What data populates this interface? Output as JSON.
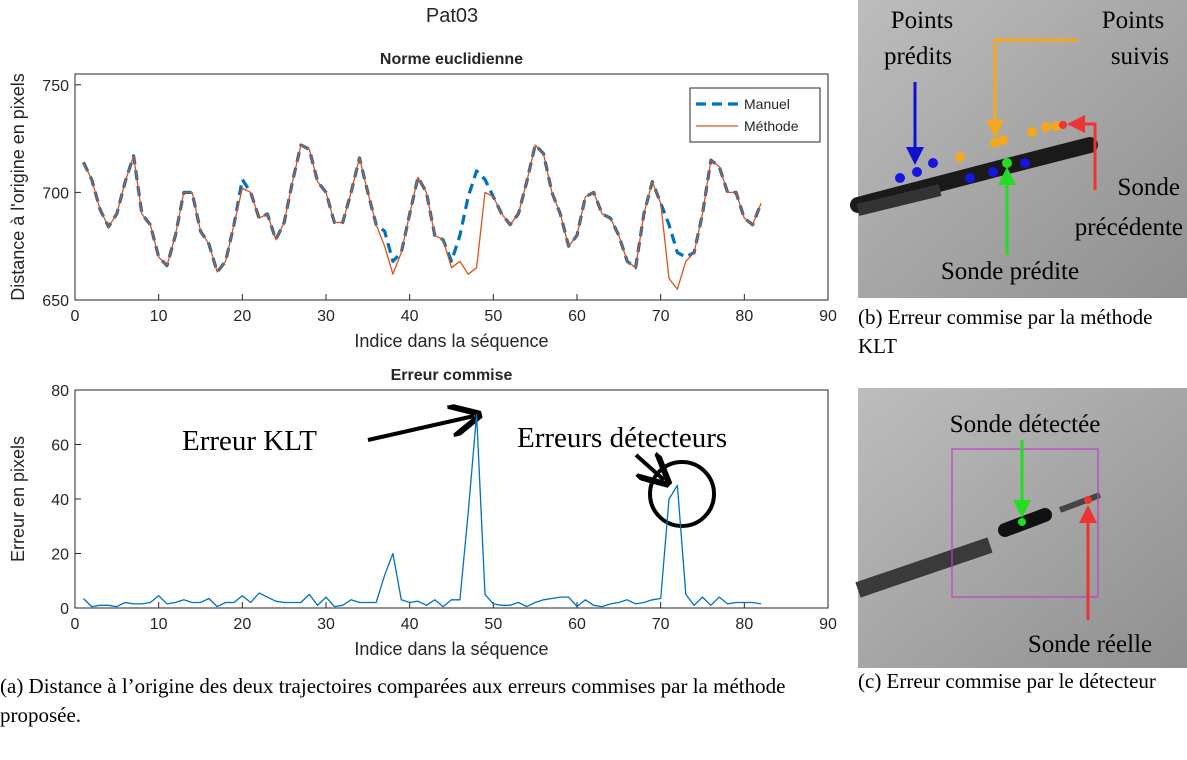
{
  "suptitle": "Pat03",
  "chart_data": [
    {
      "type": "line",
      "title": "Norme euclidienne",
      "xlabel": "Indice dans la séquence",
      "ylabel": "Distance à l'origine en pixels",
      "x": [
        1,
        2,
        3,
        4,
        5,
        6,
        7,
        8,
        9,
        10,
        11,
        12,
        13,
        14,
        15,
        16,
        17,
        18,
        19,
        20,
        21,
        22,
        23,
        24,
        25,
        26,
        27,
        28,
        29,
        30,
        31,
        32,
        33,
        34,
        35,
        36,
        37,
        38,
        39,
        40,
        41,
        42,
        43,
        44,
        45,
        46,
        47,
        48,
        49,
        50,
        51,
        52,
        53,
        54,
        55,
        56,
        57,
        58,
        59,
        60,
        61,
        62,
        63,
        64,
        65,
        66,
        67,
        68,
        69,
        70,
        71,
        72,
        73,
        74,
        75,
        76,
        77,
        78,
        79,
        80,
        81,
        82
      ],
      "series": [
        {
          "name": "Manuel",
          "color": "#0072bd",
          "linestyle": "dashed",
          "values": [
            714,
            706,
            692,
            684,
            690,
            705,
            717,
            690,
            685,
            670,
            666,
            680,
            700,
            700,
            682,
            676,
            663,
            668,
            685,
            706,
            700,
            688,
            690,
            678,
            686,
            705,
            722,
            720,
            705,
            700,
            686,
            686,
            700,
            716,
            700,
            685,
            682,
            668,
            672,
            690,
            707,
            700,
            680,
            678,
            668,
            680,
            698,
            710,
            706,
            698,
            690,
            685,
            690,
            705,
            722,
            718,
            700,
            690,
            675,
            680,
            698,
            700,
            690,
            688,
            680,
            668,
            665,
            690,
            705,
            695,
            685,
            672,
            670,
            672,
            690,
            715,
            712,
            700,
            700,
            688,
            685,
            695
          ]
        },
        {
          "name": "Méthode",
          "color": "#d95319",
          "linestyle": "solid",
          "values": [
            714,
            706,
            692,
            684,
            690,
            705,
            717,
            690,
            685,
            670,
            666,
            680,
            700,
            700,
            682,
            676,
            663,
            668,
            685,
            702,
            700,
            688,
            690,
            678,
            686,
            705,
            722,
            720,
            705,
            700,
            686,
            686,
            700,
            716,
            700,
            685,
            675,
            662,
            672,
            690,
            707,
            700,
            680,
            678,
            665,
            668,
            662,
            665,
            700,
            698,
            690,
            685,
            690,
            705,
            722,
            718,
            700,
            690,
            675,
            680,
            698,
            700,
            690,
            688,
            680,
            668,
            665,
            690,
            705,
            695,
            660,
            655,
            668,
            672,
            690,
            715,
            712,
            700,
            700,
            688,
            685,
            695
          ]
        }
      ],
      "xlim": [
        0,
        90
      ],
      "xticks": [
        0,
        10,
        20,
        30,
        40,
        50,
        60,
        70,
        80,
        90
      ],
      "ylim": [
        650,
        755
      ],
      "yticks": [
        650,
        700,
        750
      ],
      "legend": "northeast"
    },
    {
      "type": "line",
      "title": "Erreur commise",
      "xlabel": "Indice dans la séquence",
      "ylabel": "Erreur en pixels",
      "x": [
        1,
        2,
        3,
        4,
        5,
        6,
        7,
        8,
        9,
        10,
        11,
        12,
        13,
        14,
        15,
        16,
        17,
        18,
        19,
        20,
        21,
        22,
        23,
        24,
        25,
        26,
        27,
        28,
        29,
        30,
        31,
        32,
        33,
        34,
        35,
        36,
        37,
        38,
        39,
        40,
        41,
        42,
        43,
        44,
        45,
        46,
        47,
        48,
        49,
        50,
        51,
        52,
        53,
        54,
        55,
        56,
        57,
        58,
        59,
        60,
        61,
        62,
        63,
        64,
        65,
        66,
        67,
        68,
        69,
        70,
        71,
        72,
        73,
        74,
        75,
        76,
        77,
        78,
        79,
        80,
        81,
        82
      ],
      "color": "#0072bd",
      "values": [
        3.5,
        0.5,
        1,
        1,
        0.5,
        2,
        1.5,
        1.5,
        2,
        4.5,
        1.5,
        2,
        3,
        2,
        2,
        3.5,
        0.5,
        2,
        2,
        4.5,
        2,
        5.5,
        4,
        2.5,
        2,
        2,
        2,
        5,
        1,
        4,
        0.5,
        1,
        3,
        2,
        2,
        2,
        12,
        20,
        3,
        2,
        2.5,
        1,
        3,
        0.5,
        3,
        3,
        35,
        71,
        5,
        1.5,
        1,
        1,
        2,
        0.5,
        2,
        3,
        3.5,
        4,
        4,
        0.5,
        3,
        1,
        0.5,
        1.5,
        2,
        3,
        1.5,
        2,
        3,
        3.5,
        40,
        45,
        5,
        1,
        4,
        1,
        4,
        1.5,
        2,
        2,
        2,
        1.5
      ],
      "xlim": [
        0,
        90
      ],
      "xticks": [
        0,
        10,
        20,
        30,
        40,
        50,
        60,
        70,
        80,
        90
      ],
      "ylim": [
        0,
        80
      ],
      "yticks": [
        0,
        20,
        40,
        60,
        80
      ],
      "annotations": [
        "Erreur KLT",
        "Erreurs détecteurs"
      ]
    }
  ],
  "figure_a": {
    "caption": "(a) Distance à l’origine des deux trajectoires comparées aux erreurs commises par la méthode proposée."
  },
  "figure_b": {
    "caption": "(b) Erreur commise par la méthode KLT",
    "points_predicted": [
      "Points",
      "prédits"
    ],
    "points_tracked": [
      "Points",
      "suivis"
    ],
    "previous_probe": [
      "Sonde",
      "précédente"
    ],
    "predicted_probe": "Sonde prédite"
  },
  "figure_c": {
    "caption": "(c) Erreur commise par le détecteur",
    "detected_probe": "Sonde détectée",
    "real_probe": "Sonde réelle"
  }
}
